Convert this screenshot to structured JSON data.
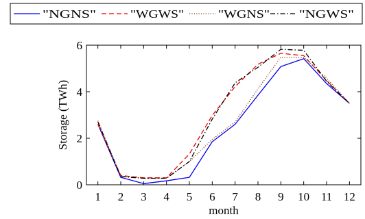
{
  "chart_data": {
    "type": "line",
    "title": "",
    "xlabel": "month",
    "ylabel": "Storage (TWh)",
    "x": [
      1,
      2,
      3,
      4,
      5,
      6,
      7,
      8,
      9,
      10,
      11,
      12
    ],
    "x_ticks": [
      "1",
      "2",
      "3",
      "4",
      "5",
      "6",
      "7",
      "8",
      "9",
      "10",
      "11",
      "12"
    ],
    "y_ticks": [
      "0",
      "2",
      "4",
      "6"
    ],
    "xlim": [
      0.5,
      12.5
    ],
    "ylim": [
      0,
      6
    ],
    "grid": false,
    "legend_position": "top",
    "series": [
      {
        "name": "\"NGNS\"",
        "color": "#0000ee",
        "dash": "solid",
        "values": [
          2.6,
          0.32,
          0.05,
          0.17,
          0.32,
          1.85,
          2.6,
          3.85,
          5.08,
          5.42,
          4.35,
          3.5
        ]
      },
      {
        "name": "\"WGWS\"",
        "color": "#ee0000",
        "dash": "dashed",
        "values": [
          2.6,
          0.4,
          0.3,
          0.3,
          1.32,
          2.98,
          4.22,
          5.18,
          5.65,
          5.55,
          4.48,
          3.5
        ]
      },
      {
        "name": "\"WGNS\"",
        "color": "#8b4513",
        "dash": "dotted",
        "values": [
          2.75,
          0.38,
          0.28,
          0.28,
          1.0,
          1.95,
          2.7,
          4.12,
          5.48,
          5.48,
          4.58,
          3.5
        ]
      },
      {
        "name": "\"NGWS\"",
        "color": "#000000",
        "dash": "dashdot",
        "values": [
          2.7,
          0.35,
          0.28,
          0.28,
          1.0,
          2.82,
          4.38,
          5.05,
          5.82,
          5.78,
          4.45,
          3.5
        ]
      }
    ]
  }
}
